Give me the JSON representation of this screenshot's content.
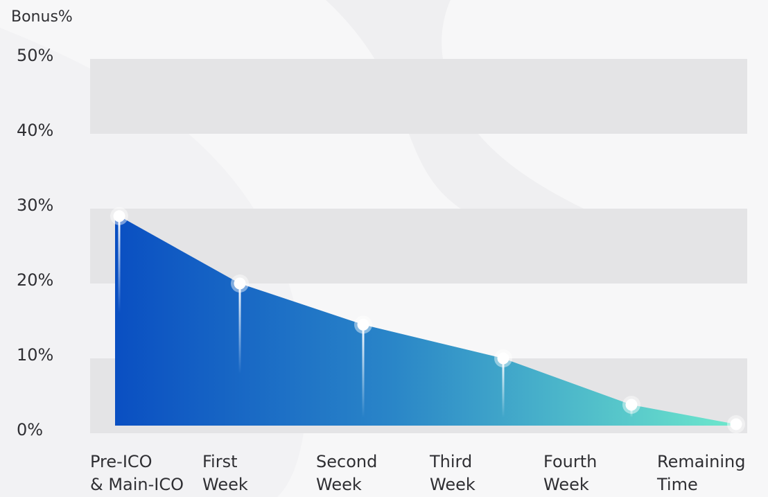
{
  "chart_data": {
    "type": "area",
    "title": "",
    "xlabel": "",
    "ylabel": "Bonus%",
    "categories": [
      [
        "Pre-ICO",
        "& Main-ICO"
      ],
      [
        "First",
        "Week"
      ],
      [
        "Second",
        "Week"
      ],
      [
        "Third",
        "Week"
      ],
      [
        "Fourth",
        "Week"
      ],
      [
        "Remaining",
        "Time"
      ]
    ],
    "values": [
      29,
      20,
      14.5,
      10,
      3.8,
      1.2
    ],
    "ylim": [
      0,
      50
    ],
    "yticks": [
      "0%",
      "10%",
      "20%",
      "30%",
      "40%",
      "50%"
    ],
    "grid": "alternating horizontal bands",
    "legend": "none",
    "colors": {
      "gradient_start": "#0a4fc2",
      "gradient_mid": "#2a86c8",
      "gradient_end": "#6ee8cc",
      "band": "#e4e4e6",
      "text": "#2f2f33"
    }
  }
}
